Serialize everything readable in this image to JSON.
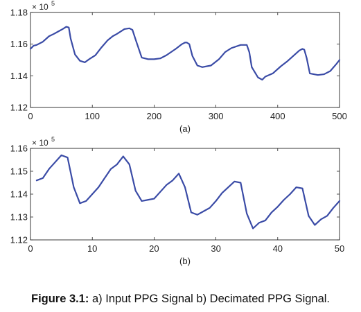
{
  "caption": {
    "label": "Figure 3.1:",
    "text": " a) Input PPG Signal b) Decimated PPG Signal."
  },
  "colors": {
    "line": "#3a4ba6",
    "axis": "#222222"
  },
  "chart_data": [
    {
      "type": "line",
      "panel_label": "(a)",
      "exponent_label": "× 10",
      "exponent_power": "5",
      "xlim": [
        0,
        500
      ],
      "ylim": [
        1.12,
        1.18
      ],
      "xticks": [
        0,
        100,
        200,
        300,
        400,
        500
      ],
      "xtick_labels": [
        "0",
        "100",
        "200",
        "300",
        "400",
        "500"
      ],
      "yticks": [
        1.12,
        1.14,
        1.16,
        1.18
      ],
      "ytick_labels": [
        "1.12",
        "1.14",
        "1.16",
        "1.18"
      ],
      "grid": false,
      "series": [
        {
          "x": [
            0,
            5,
            10,
            20,
            30,
            38,
            45,
            52,
            58,
            62,
            65,
            72,
            80,
            88,
            95,
            105,
            115,
            125,
            133,
            140,
            152,
            160,
            165,
            170,
            180,
            190,
            200,
            210,
            220,
            235,
            245,
            250,
            253,
            257,
            262,
            270,
            278,
            285,
            292,
            305,
            315,
            325,
            340,
            350,
            354,
            358,
            368,
            375,
            380,
            392,
            405,
            415,
            425,
            435,
            440,
            443,
            447,
            452,
            465,
            475,
            485,
            495,
            500
          ],
          "y": [
            1.157,
            1.159,
            1.1595,
            1.1615,
            1.165,
            1.1665,
            1.168,
            1.1695,
            1.171,
            1.1705,
            1.1635,
            1.1535,
            1.1495,
            1.1485,
            1.1505,
            1.153,
            1.158,
            1.1625,
            1.165,
            1.1665,
            1.1695,
            1.17,
            1.169,
            1.163,
            1.1515,
            1.1505,
            1.1505,
            1.151,
            1.153,
            1.157,
            1.16,
            1.161,
            1.161,
            1.16,
            1.1525,
            1.1465,
            1.1455,
            1.146,
            1.1465,
            1.1505,
            1.155,
            1.1575,
            1.1595,
            1.1595,
            1.155,
            1.1455,
            1.139,
            1.1375,
            1.1395,
            1.1415,
            1.146,
            1.149,
            1.1525,
            1.156,
            1.157,
            1.1565,
            1.151,
            1.1415,
            1.1405,
            1.141,
            1.143,
            1.1475,
            1.15
          ]
        }
      ]
    },
    {
      "type": "line",
      "panel_label": "(b)",
      "exponent_label": "× 10",
      "exponent_power": "5",
      "xlim": [
        0,
        50
      ],
      "ylim": [
        1.12,
        1.16
      ],
      "xticks": [
        0,
        10,
        20,
        30,
        40,
        50
      ],
      "xtick_labels": [
        "0",
        "10",
        "20",
        "30",
        "40",
        "50"
      ],
      "yticks": [
        1.12,
        1.13,
        1.14,
        1.15,
        1.16
      ],
      "ytick_labels": [
        "1.12",
        "1.13",
        "1.14",
        "1.15",
        "1.16"
      ],
      "grid": false,
      "series": [
        {
          "x": [
            1,
            2,
            3,
            4,
            5,
            6,
            7,
            8,
            9,
            10,
            11,
            12,
            13,
            14,
            15,
            16,
            17,
            18,
            19,
            20,
            21,
            22,
            23,
            24,
            25,
            26,
            27,
            28,
            29,
            30,
            31,
            32,
            33,
            34,
            35,
            36,
            37,
            38,
            39,
            40,
            41,
            42,
            43,
            44,
            45,
            46,
            47,
            48,
            49,
            50
          ],
          "y": [
            1.146,
            1.147,
            1.151,
            1.154,
            1.157,
            1.156,
            1.143,
            1.136,
            1.137,
            1.14,
            1.143,
            1.147,
            1.151,
            1.153,
            1.1565,
            1.153,
            1.1415,
            1.137,
            1.1375,
            1.138,
            1.141,
            1.144,
            1.146,
            1.149,
            1.143,
            1.132,
            1.131,
            1.1325,
            1.134,
            1.137,
            1.1405,
            1.143,
            1.1455,
            1.145,
            1.1315,
            1.125,
            1.1275,
            1.1285,
            1.132,
            1.1345,
            1.1375,
            1.14,
            1.143,
            1.1425,
            1.1305,
            1.1265,
            1.129,
            1.1305,
            1.134,
            1.137
          ]
        }
      ]
    }
  ]
}
